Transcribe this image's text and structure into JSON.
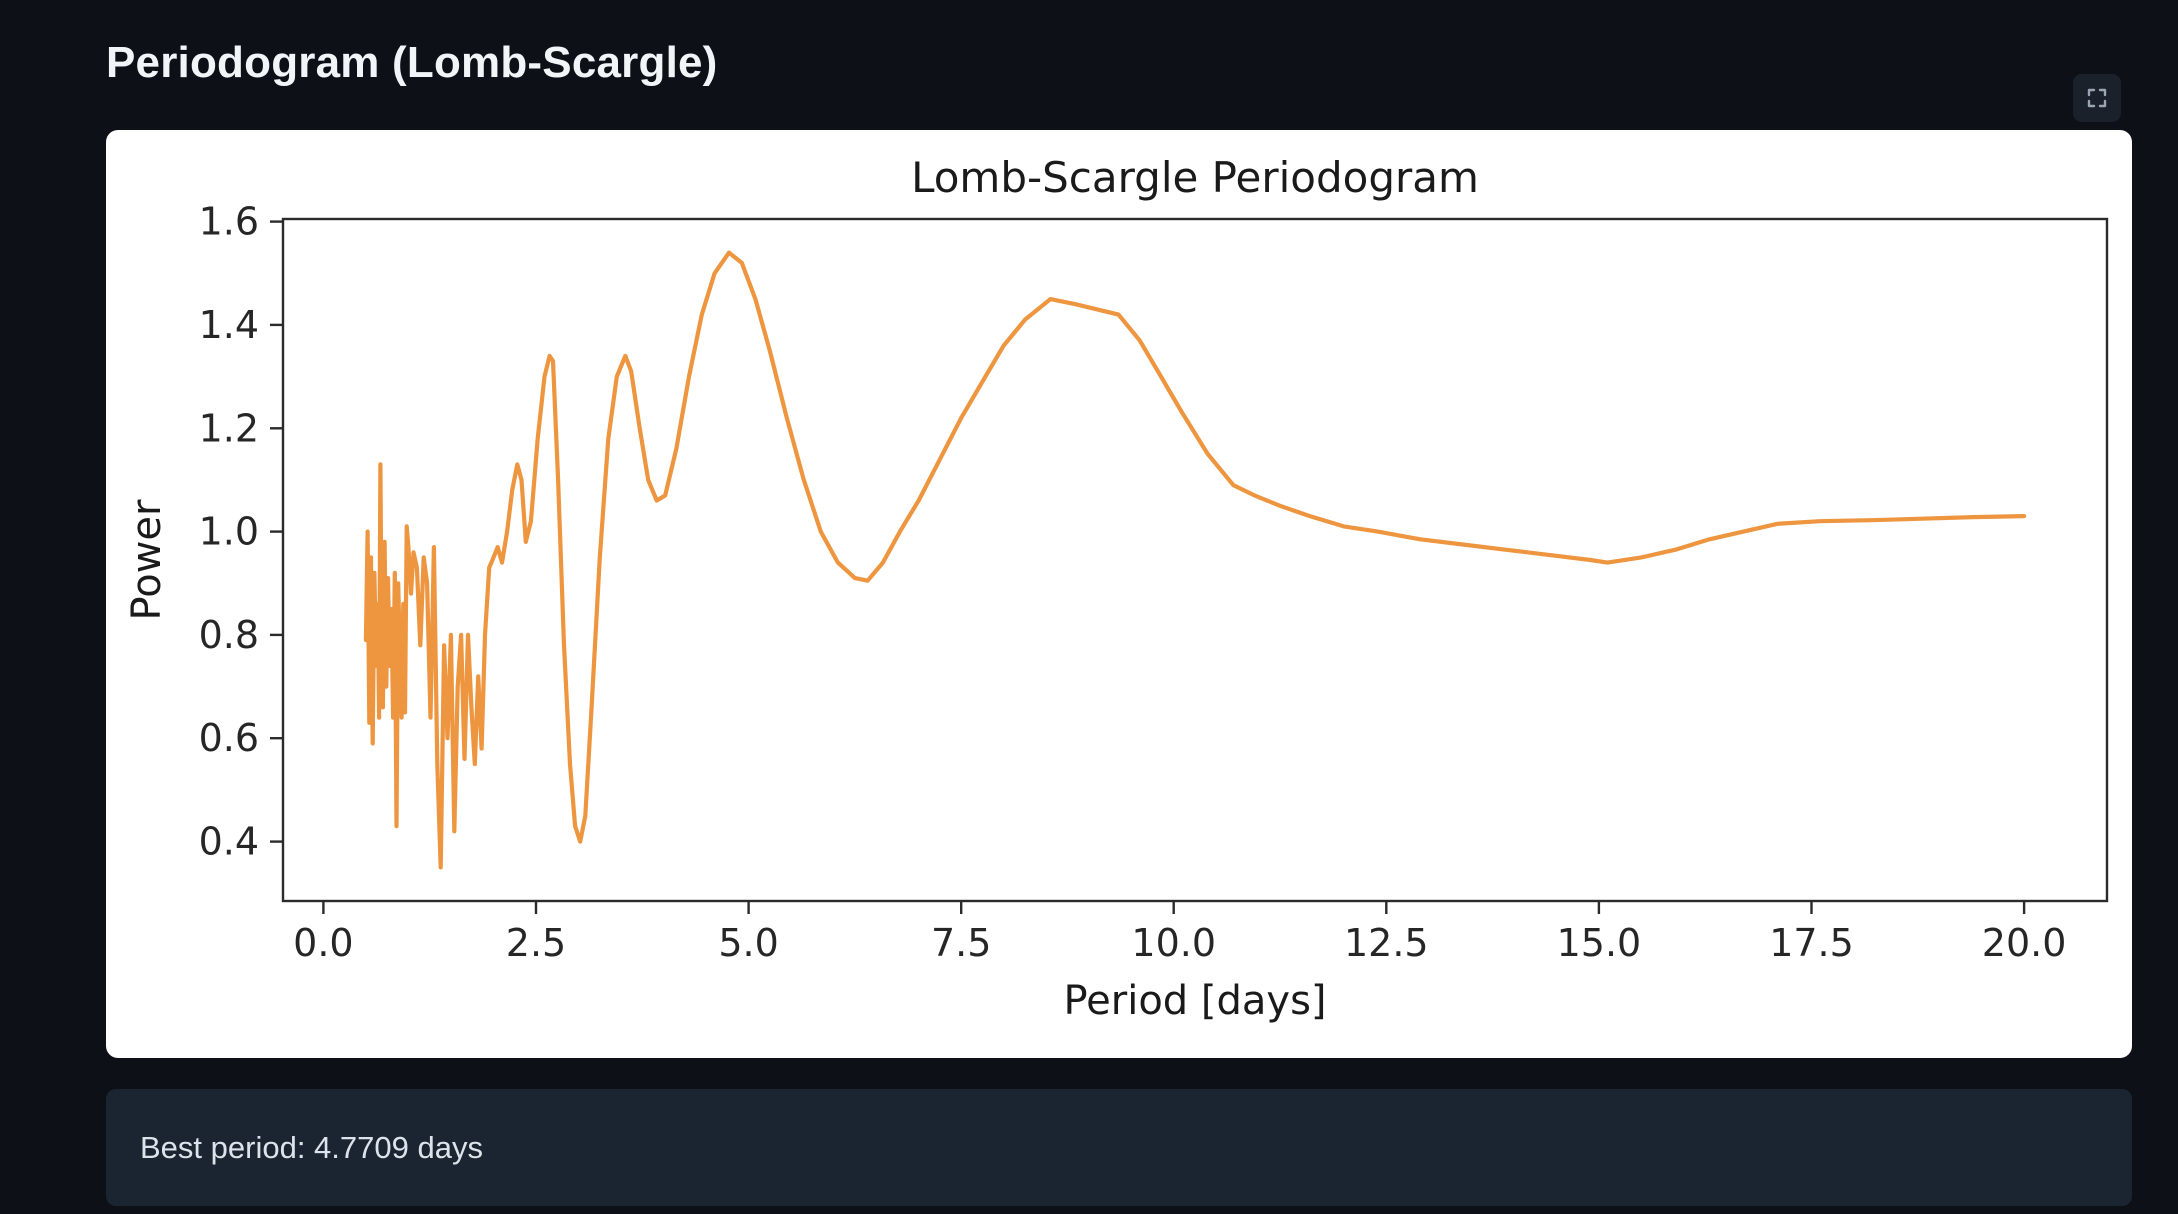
{
  "page": {
    "title": "Periodogram (Lomb-Scargle)"
  },
  "toolbar": {
    "fullscreen_icon": "fullscreen-icon"
  },
  "status_bar": {
    "text": "Best period: 4.7709 days"
  },
  "colors": {
    "background": "#0d1117",
    "card": "#ffffff",
    "status_bg": "#1b2531",
    "status_text": "#dde3ea",
    "title_text": "#f2f5f8",
    "line": "#ee9540",
    "axis": "#2b2b2b",
    "tick_text": "#262626",
    "icon": "#9aa4b2"
  },
  "chart_data": {
    "type": "line",
    "title": "Lomb-Scargle Periodogram",
    "xlabel": "Period [days]",
    "ylabel": "Power",
    "xlim": [
      -0.475,
      20.975
    ],
    "ylim": [
      0.285,
      1.605
    ],
    "xticks": [
      0.0,
      2.5,
      5.0,
      7.5,
      10.0,
      12.5,
      15.0,
      17.5,
      20.0
    ],
    "yticks": [
      0.4,
      0.6,
      0.8,
      1.0,
      1.2,
      1.4,
      1.6
    ],
    "grid": false,
    "legend": null,
    "line_color": "#ee9540",
    "best_period_days": 4.7709,
    "series": [
      {
        "name": "power",
        "points": [
          [
            0.5,
            0.79
          ],
          [
            0.52,
            1.0
          ],
          [
            0.54,
            0.63
          ],
          [
            0.56,
            0.95
          ],
          [
            0.58,
            0.59
          ],
          [
            0.6,
            0.92
          ],
          [
            0.62,
            0.74
          ],
          [
            0.64,
            0.86
          ],
          [
            0.655,
            0.64
          ],
          [
            0.67,
            1.13
          ],
          [
            0.685,
            0.8
          ],
          [
            0.7,
            0.66
          ],
          [
            0.72,
            0.98
          ],
          [
            0.74,
            0.7
          ],
          [
            0.76,
            0.91
          ],
          [
            0.78,
            0.74
          ],
          [
            0.8,
            0.85
          ],
          [
            0.82,
            0.64
          ],
          [
            0.84,
            0.92
          ],
          [
            0.86,
            0.43
          ],
          [
            0.88,
            0.9
          ],
          [
            0.9,
            0.76
          ],
          [
            0.92,
            0.64
          ],
          [
            0.94,
            0.86
          ],
          [
            0.96,
            0.65
          ],
          [
            0.98,
            1.01
          ],
          [
            1.0,
            0.97
          ],
          [
            1.03,
            0.88
          ],
          [
            1.06,
            0.96
          ],
          [
            1.1,
            0.93
          ],
          [
            1.14,
            0.78
          ],
          [
            1.18,
            0.95
          ],
          [
            1.22,
            0.9
          ],
          [
            1.26,
            0.64
          ],
          [
            1.3,
            0.97
          ],
          [
            1.34,
            0.55
          ],
          [
            1.38,
            0.35
          ],
          [
            1.42,
            0.78
          ],
          [
            1.46,
            0.6
          ],
          [
            1.5,
            0.8
          ],
          [
            1.54,
            0.42
          ],
          [
            1.58,
            0.7
          ],
          [
            1.62,
            0.8
          ],
          [
            1.66,
            0.56
          ],
          [
            1.7,
            0.8
          ],
          [
            1.74,
            0.66
          ],
          [
            1.78,
            0.55
          ],
          [
            1.82,
            0.72
          ],
          [
            1.86,
            0.58
          ],
          [
            1.9,
            0.8
          ],
          [
            1.95,
            0.93
          ],
          [
            2.0,
            0.95
          ],
          [
            2.05,
            0.97
          ],
          [
            2.1,
            0.94
          ],
          [
            2.16,
            1.0
          ],
          [
            2.22,
            1.08
          ],
          [
            2.28,
            1.13
          ],
          [
            2.33,
            1.1
          ],
          [
            2.38,
            0.98
          ],
          [
            2.44,
            1.02
          ],
          [
            2.52,
            1.18
          ],
          [
            2.6,
            1.3
          ],
          [
            2.66,
            1.34
          ],
          [
            2.7,
            1.33
          ],
          [
            2.76,
            1.1
          ],
          [
            2.83,
            0.78
          ],
          [
            2.9,
            0.55
          ],
          [
            2.96,
            0.43
          ],
          [
            3.02,
            0.4
          ],
          [
            3.08,
            0.45
          ],
          [
            3.15,
            0.65
          ],
          [
            3.25,
            0.95
          ],
          [
            3.35,
            1.18
          ],
          [
            3.45,
            1.3
          ],
          [
            3.55,
            1.34
          ],
          [
            3.62,
            1.31
          ],
          [
            3.72,
            1.2
          ],
          [
            3.82,
            1.1
          ],
          [
            3.92,
            1.06
          ],
          [
            4.02,
            1.07
          ],
          [
            4.15,
            1.16
          ],
          [
            4.3,
            1.3
          ],
          [
            4.45,
            1.42
          ],
          [
            4.6,
            1.5
          ],
          [
            4.77,
            1.54
          ],
          [
            4.92,
            1.52
          ],
          [
            5.08,
            1.45
          ],
          [
            5.25,
            1.35
          ],
          [
            5.45,
            1.22
          ],
          [
            5.65,
            1.1
          ],
          [
            5.85,
            1.0
          ],
          [
            6.05,
            0.94
          ],
          [
            6.25,
            0.91
          ],
          [
            6.4,
            0.905
          ],
          [
            6.58,
            0.94
          ],
          [
            6.78,
            1.0
          ],
          [
            7.0,
            1.06
          ],
          [
            7.25,
            1.14
          ],
          [
            7.5,
            1.22
          ],
          [
            7.75,
            1.29
          ],
          [
            8.0,
            1.36
          ],
          [
            8.25,
            1.41
          ],
          [
            8.55,
            1.45
          ],
          [
            8.85,
            1.44
          ],
          [
            9.1,
            1.43
          ],
          [
            9.35,
            1.42
          ],
          [
            9.6,
            1.37
          ],
          [
            9.85,
            1.3
          ],
          [
            10.1,
            1.23
          ],
          [
            10.4,
            1.15
          ],
          [
            10.7,
            1.09
          ],
          [
            10.95,
            1.07
          ],
          [
            11.25,
            1.05
          ],
          [
            11.6,
            1.03
          ],
          [
            12.0,
            1.01
          ],
          [
            12.4,
            1.0
          ],
          [
            12.9,
            0.985
          ],
          [
            13.4,
            0.975
          ],
          [
            13.9,
            0.965
          ],
          [
            14.4,
            0.955
          ],
          [
            14.9,
            0.945
          ],
          [
            15.1,
            0.94
          ],
          [
            15.5,
            0.95
          ],
          [
            15.9,
            0.965
          ],
          [
            16.3,
            0.985
          ],
          [
            16.7,
            1.0
          ],
          [
            17.1,
            1.015
          ],
          [
            17.6,
            1.02
          ],
          [
            18.2,
            1.022
          ],
          [
            18.8,
            1.025
          ],
          [
            19.4,
            1.028
          ],
          [
            20.0,
            1.03
          ]
        ]
      }
    ]
  }
}
